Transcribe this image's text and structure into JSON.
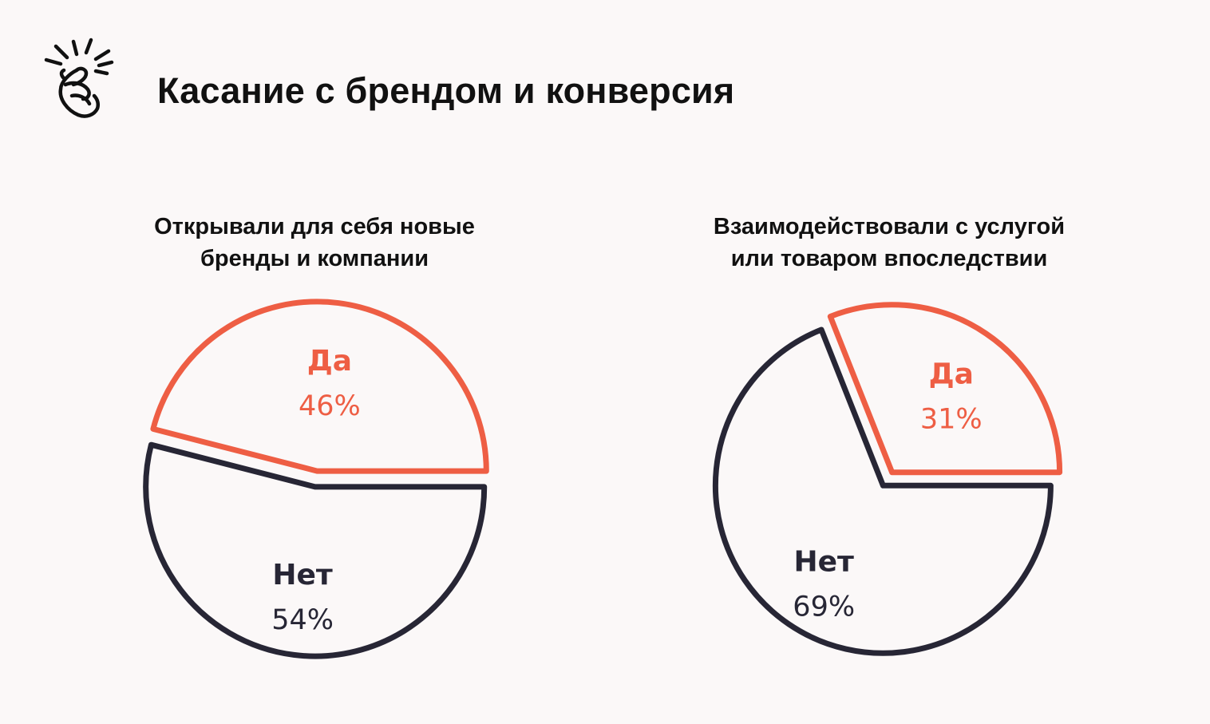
{
  "header": {
    "title": "Касание с брендом и конверсия",
    "icon": "snap-fingers-icon"
  },
  "colors": {
    "accent": "#ee5e44",
    "dark": "#272635",
    "background": "#fbf8f8"
  },
  "chart_data": [
    {
      "type": "pie",
      "title_lines": [
        "Открывали для себя новые",
        "бренды и компании"
      ],
      "slices": [
        {
          "label": "Да",
          "value": 46,
          "display": "46%",
          "color": "#ee5e44"
        },
        {
          "label": "Нет",
          "value": 54,
          "display": "54%",
          "color": "#272635"
        }
      ]
    },
    {
      "type": "pie",
      "title_lines": [
        "Взаимодействовали с услугой",
        "или товаром впоследствии"
      ],
      "slices": [
        {
          "label": "Да",
          "value": 31,
          "display": "31%",
          "color": "#ee5e44"
        },
        {
          "label": "Нет",
          "value": 69,
          "display": "69%",
          "color": "#272635"
        }
      ]
    }
  ]
}
